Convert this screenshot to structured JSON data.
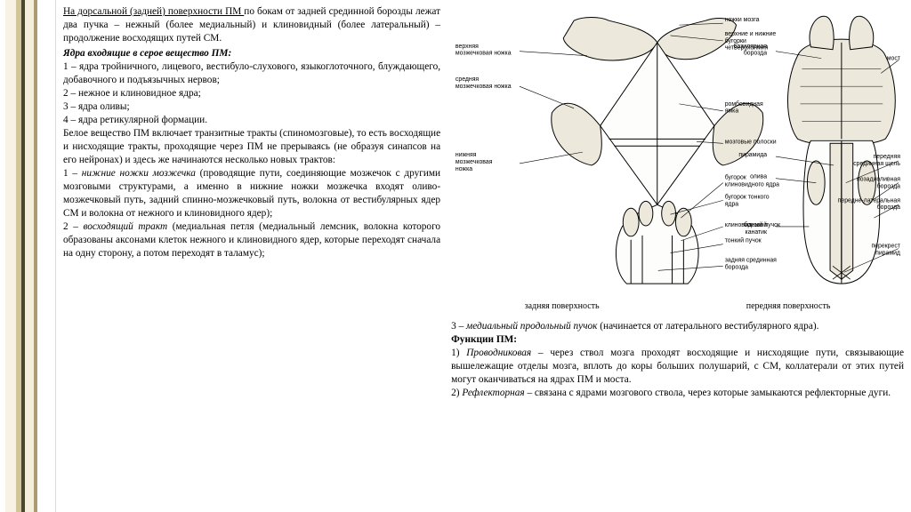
{
  "left": {
    "p1a": "На дорсальной (задней) поверхности ПМ ",
    "p1b": "по бокам от задней срединной борозды лежат два пучка – нежный (более медиальный) и клиновидный (более латеральный) – продолжение восходящих путей СМ.",
    "h1": "Ядра входящие в серое вещество ПМ:",
    "li1": "1 – ядра тройничного, лицевого, вестибуло-слухового, языкоглоточного, блуждающего, добавочного и подъязычных нервов;",
    "li2": "2 – нежное и клиновидное ядра;",
    "li3": "3 – ядра оливы;",
    "li4": "4 – ядра ретикулярной формации.",
    "p2": "Белое вещество ПМ включает транзитные тракты (спиномозговые), то есть восходящие и нисходящие тракты, проходящие через ПМ не прерываясь (не образуя синапсов на его нейронах) и здесь же начинаются несколько новых трактов:",
    "t1a": "1 – ",
    "t1b": "нижние ножки мозжечка",
    "t1c": " (проводящие пути, соединяющие мозжечок с другими мозговыми структурами, а именно в нижние ножки мозжечка входят оливо-мозжечковый путь, задний спинно-мозжечковый путь, волокна от вестибулярных ядер СМ и волокна от нежного и клиновидного ядер);",
    "t2a": "2 – ",
    "t2b": "восходящий тракт",
    "t2c": " (медиальная петля (медиальный лемсник, волокна которого образованы аксонами клеток нежного и клиновидного ядер, которые переходят сначала на одну сторону, а потом переходят в таламус);"
  },
  "figure": {
    "caption_left": "задняя поверхность",
    "caption_right": "передняя поверхность",
    "labels": {
      "l_top1": "верхняя\nмозжечковая ножка",
      "l_top2": "средняя\nмозжечковая ножка",
      "l_mid1": "нижняя\nмозжечковая\nножка",
      "r_top1": "ножки мозга",
      "r_top2": "верхние и нижние\nбугорки\nчетверохолмия",
      "r_mid1": "ромбовидная\nямка",
      "r_mid2": "мозговые полоски",
      "r_mid3": "бугорок\nклиновидного ядра",
      "r_mid4": "бугорок тонкого\nядра",
      "r_mid5": "клиновидный пучок",
      "r_mid6": "тонкий пучок",
      "r_mid7": "задняя срединная\nборозда",
      "rr_top1": "базилярная\nборозда",
      "rr_top2": "мост",
      "rr_mid1": "пирамида",
      "rr_mid2": "олива",
      "rr_mid3": "боковой\nканатик",
      "rr_r1": "передняя\nсрединная щель",
      "rr_r2": "позадиоливная\nборозда",
      "rr_r3": "передне-латеральная\nборозда",
      "rr_r4": "перекрест\nпирамид"
    },
    "style": {
      "stroke": "#000000",
      "fill": "#ffffff",
      "shade": "#e8e4da",
      "label_fontsize": 7
    }
  },
  "right": {
    "p3a": "3 – ",
    "p3b": "медиальный продольный пучок",
    "p3c": " (начинается от латерального вестибулярного ядра).",
    "h2": "Функции ПМ:",
    "f1a": "1) ",
    "f1b": "Проводниковая",
    "f1c": " – через ствол мозга проходят восходящие и нисходящие пути, связывающие вышележащие отделы мозга, вплоть до коры больших полушарий, с СМ, коллатерали от этих путей могут оканчиваться на ядрах ПМ и моста.",
    "f2a": "2) ",
    "f2b": "Рефлекторная",
    "f2c": " – связана с ядрами мозгового ствола, через которые замыкаются рефлекторные дуги."
  }
}
